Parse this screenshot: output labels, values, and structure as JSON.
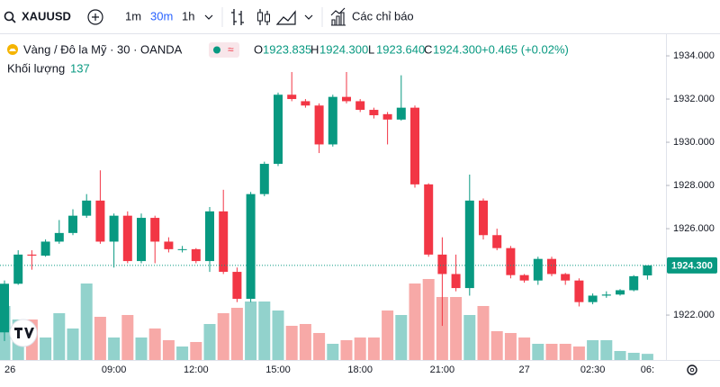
{
  "toolbar": {
    "symbol": "XAUUSD",
    "intervals": [
      "1m",
      "30m",
      "1h"
    ],
    "indicators": "Các chỉ báo"
  },
  "header": {
    "instrument": "Vàng / Đô la Mỹ · 30 · OANDA",
    "o_label": "O",
    "o": "1923.835",
    "h_label": "H",
    "h": "1924.300",
    "l_label": "L",
    "l": "1923.640",
    "c_label": "C",
    "c": "1924.300",
    "change": "+0.465 (+0.02%)",
    "volume_label": "Khối lượng"
  },
  "chart_data": {
    "type": "candlestick",
    "categories": [
      "26",
      null,
      null,
      null,
      null,
      null,
      null,
      null,
      "09:00",
      null,
      null,
      null,
      null,
      null,
      "12:00",
      null,
      null,
      null,
      null,
      null,
      "15:00",
      null,
      null,
      null,
      null,
      null,
      "18:00",
      null,
      null,
      null,
      null,
      null,
      "21:00",
      null,
      null,
      null,
      null,
      null,
      "27",
      null,
      null,
      null,
      null,
      "02:30",
      null,
      null,
      null,
      "06:"
    ],
    "open": [
      1921.2,
      1923.45,
      1924.8,
      1924.75,
      1925.4,
      1925.8,
      1926.6,
      1927.3,
      1925.4,
      1926.6,
      1924.5,
      1926.5,
      1925.4,
      1925.05,
      1925.05,
      1924.5,
      1926.8,
      1924.0,
      1922.75,
      1927.6,
      1929.0,
      1932.2,
      1931.9,
      1931.7,
      1929.9,
      1932.1,
      1931.9,
      1931.5,
      1931.3,
      1931.05,
      1931.6,
      1928.05,
      1924.8,
      1923.9,
      1923.25,
      1927.3,
      1925.7,
      1925.1,
      1923.85,
      1923.6,
      1924.6,
      1923.9,
      1923.6,
      1922.6,
      1922.9,
      1922.95,
      1923.15,
      1923.835
    ],
    "high": [
      1923.6,
      1925.0,
      1925.0,
      1925.5,
      1926.4,
      1926.9,
      1927.6,
      1928.7,
      1926.7,
      1926.8,
      1926.7,
      1926.6,
      1925.6,
      1925.2,
      1925.1,
      1927.0,
      1927.8,
      1924.2,
      1927.7,
      1929.1,
      1932.3,
      1933.25,
      1932.0,
      1931.8,
      1932.2,
      1933.25,
      1932.0,
      1931.6,
      1931.4,
      1933.1,
      1931.7,
      1928.1,
      1925.6,
      1924.8,
      1928.5,
      1927.4,
      1926.0,
      1925.2,
      1923.9,
      1924.7,
      1924.7,
      1923.95,
      1923.7,
      1923.0,
      1923.1,
      1923.2,
      1923.85,
      1924.3
    ],
    "low": [
      1920.8,
      1923.4,
      1924.1,
      1924.7,
      1925.3,
      1925.7,
      1926.5,
      1925.3,
      1924.2,
      1924.4,
      1924.4,
      1924.4,
      1924.9,
      1924.9,
      1924.4,
      1924.0,
      1923.9,
      1922.6,
      1922.6,
      1927.5,
      1928.9,
      1931.9,
      1931.6,
      1929.5,
      1929.8,
      1931.8,
      1931.4,
      1931.1,
      1929.9,
      1931.0,
      1927.9,
      1924.7,
      1921.5,
      1923.1,
      1922.9,
      1925.5,
      1925.0,
      1923.7,
      1923.5,
      1923.4,
      1923.8,
      1923.4,
      1922.4,
      1922.5,
      1922.8,
      1922.9,
      1923.1,
      1923.64
    ],
    "close": [
      1923.45,
      1924.8,
      1924.75,
      1925.4,
      1925.8,
      1926.6,
      1927.3,
      1925.4,
      1926.6,
      1924.5,
      1926.5,
      1925.4,
      1925.05,
      1925.05,
      1924.5,
      1926.8,
      1924.0,
      1922.75,
      1927.6,
      1929.0,
      1932.2,
      1932.0,
      1931.7,
      1929.9,
      1932.1,
      1931.9,
      1931.5,
      1931.25,
      1931.05,
      1931.6,
      1928.05,
      1924.8,
      1923.9,
      1923.25,
      1927.3,
      1925.7,
      1925.1,
      1923.85,
      1923.6,
      1924.6,
      1923.9,
      1923.6,
      1922.6,
      1922.9,
      1922.95,
      1923.15,
      1923.8,
      1924.3
    ],
    "volume": [
      1200,
      900,
      900,
      500,
      1040,
      700,
      1700,
      960,
      500,
      1000,
      500,
      700,
      440,
      300,
      400,
      800,
      1040,
      1160,
      1300,
      1300,
      1100,
      760,
      800,
      600,
      360,
      440,
      500,
      500,
      1100,
      1000,
      1700,
      1800,
      1400,
      1400,
      1000,
      1200,
      640,
      600,
      500,
      360,
      360,
      360,
      300,
      440,
      440,
      200,
      160,
      137
    ],
    "up_color": "#089981",
    "down_color": "#f23645",
    "up_volume_color": "#92d2cc",
    "down_volume_color": "#f7a9a7",
    "ylim": [
      1919.92,
      1934.71
    ],
    "yticks": [
      {
        "value": 1922,
        "label": "1922.000"
      },
      {
        "value": 1926,
        "label": "1926.000"
      },
      {
        "value": 1928,
        "label": "1928.000"
      },
      {
        "value": 1930,
        "label": "1930.000"
      },
      {
        "value": 1932,
        "label": "1932.000"
      },
      {
        "value": 1934,
        "label": "1934.000"
      }
    ],
    "last_price_label": "1924.300",
    "grid": false
  }
}
